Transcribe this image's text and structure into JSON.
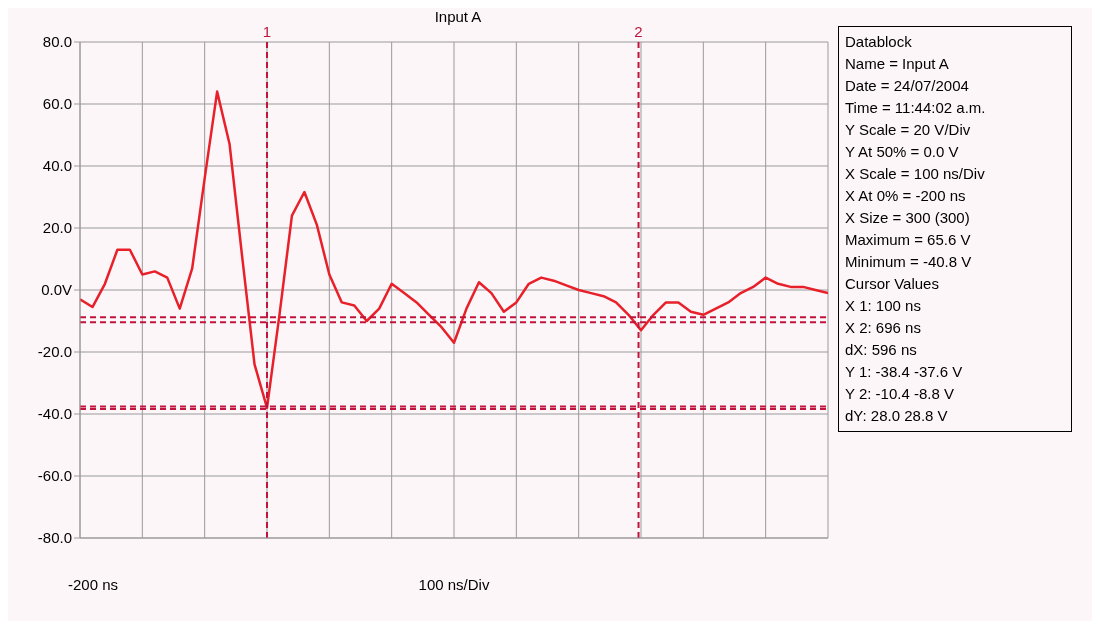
{
  "chart_data": {
    "type": "line",
    "title": "Input A",
    "xlabel": "100 ns/Div",
    "categories": [
      null,
      null,
      null,
      null,
      null,
      null,
      null,
      null,
      null,
      null,
      null,
      null,
      null,
      null,
      null,
      null,
      null,
      null,
      null,
      null,
      null,
      null,
      null,
      null,
      null,
      null,
      null,
      null,
      null,
      null,
      null,
      null,
      null,
      null,
      null,
      null,
      null,
      null,
      null,
      null,
      null,
      null,
      null,
      null,
      null,
      null,
      null,
      null,
      null,
      null,
      null,
      null,
      null,
      null,
      null,
      null,
      null,
      null,
      null,
      null,
      null
    ],
    "series": [
      {
        "color": "#e8202a",
        "values": [
          -3,
          -5.5,
          2,
          13,
          13,
          5,
          6,
          4,
          -6,
          7,
          36,
          64,
          47,
          11,
          -24,
          -38,
          -8,
          24,
          31.6,
          21,
          5,
          -4,
          -5,
          -10,
          -6,
          2,
          -1,
          -4,
          -8,
          -12,
          -17,
          -6,
          2.5,
          -1,
          -7,
          -4,
          2,
          4,
          3,
          1.5,
          0,
          -1,
          -2,
          -4,
          -8,
          -13,
          -8,
          -4,
          -4,
          -7,
          -8,
          -6,
          -4,
          -1,
          1,
          4,
          2,
          1,
          1,
          0,
          -1
        ]
      }
    ],
    "ylim": [
      -80,
      80
    ],
    "yticks": [
      {
        "value": -80,
        "label": "-80.0"
      },
      {
        "value": -60,
        "label": "-60.0"
      },
      {
        "value": -40,
        "label": "-40.0"
      },
      {
        "value": -20,
        "label": "-20.0"
      },
      {
        "value": 0,
        "label": "0.0V"
      },
      {
        "value": 20,
        "label": "20.0"
      },
      {
        "value": 40,
        "label": "40.0"
      },
      {
        "value": 60,
        "label": "60.0"
      },
      {
        "value": 80,
        "label": "80.0"
      }
    ],
    "grid": true,
    "legend": false,
    "marker": "none",
    "line_style": "solid",
    "ref_lines": [
      {
        "axis": "y",
        "value": -38.4,
        "label": null,
        "color": "#c0143c",
        "line_style": "dashed"
      },
      {
        "axis": "y",
        "value": -37.6,
        "label": null,
        "color": "#c0143c",
        "line_style": "dashed"
      },
      {
        "axis": "y",
        "value": -10.4,
        "label": null,
        "color": "#c0143c",
        "line_style": "dashed"
      },
      {
        "axis": "y",
        "value": -8.8,
        "label": null,
        "color": "#c0143c",
        "line_style": "dashed"
      }
    ],
    "annotations": [
      "1",
      "2",
      "-200 ns",
      "Datablock",
      "Name = Input A",
      "Date = 24/07/2004",
      "Time = 11:44:02 a.m.",
      "Y Scale = 20 V/Div",
      "Y At 50% = 0.0 V",
      "X Scale = 100 ns/Div",
      "X At 0% = -200 ns",
      "X Size = 300 (300)",
      "Maximum = 65.6 V",
      "Minimum = -40.8 V",
      "Cursor Values",
      "X 1: 100 ns",
      "X 2: 696 ns",
      "dX: 596 ns",
      "Y 1: -38.4 -37.6 V",
      "Y 2: -10.4 -8.8 V",
      "dY: 28.0 28.8 V"
    ]
  }
}
